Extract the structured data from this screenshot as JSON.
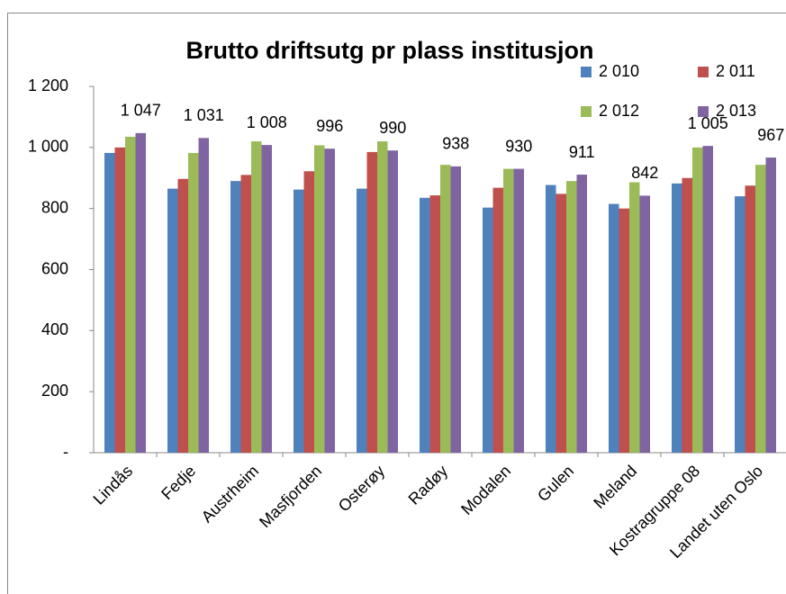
{
  "chart_data": {
    "type": "bar",
    "title": "Brutto driftsutg pr plass institusjon",
    "categories": [
      "Lindås",
      "Fedje",
      "Austrheim",
      "Masfjorden",
      "Osterøy",
      "Radøy",
      "Modalen",
      "Gulen",
      "Meland",
      "Kostragruppe 08",
      "Landet uten Oslo"
    ],
    "series": [
      {
        "name": "2 010",
        "color": "#4f81bd",
        "values": [
          982,
          865,
          890,
          862,
          865,
          835,
          803,
          877,
          815,
          882,
          840
        ]
      },
      {
        "name": "2 011",
        "color": "#c0504d",
        "values": [
          1000,
          897,
          910,
          922,
          985,
          843,
          868,
          848,
          800,
          900,
          875
        ]
      },
      {
        "name": "2 012",
        "color": "#9bbb59",
        "values": [
          1035,
          982,
          1020,
          1007,
          1020,
          943,
          930,
          890,
          886,
          1000,
          943
        ]
      },
      {
        "name": "2 013",
        "color": "#8064a2",
        "values": [
          1047,
          1031,
          1008,
          996,
          990,
          938,
          930,
          911,
          842,
          1005,
          967
        ],
        "value_labels": [
          "1 047",
          "1 031",
          "1 008",
          "996",
          "990",
          "938",
          "930",
          "911",
          "842",
          "1 005",
          "967"
        ]
      }
    ],
    "ylim": [
      0,
      1200
    ],
    "yticks": [
      {
        "value": 0,
        "label": "-"
      },
      200,
      400,
      600,
      800,
      {
        "value": 1000,
        "label": "1 000"
      },
      {
        "value": 1200,
        "label": "1 200"
      }
    ],
    "legend": "top-right"
  }
}
